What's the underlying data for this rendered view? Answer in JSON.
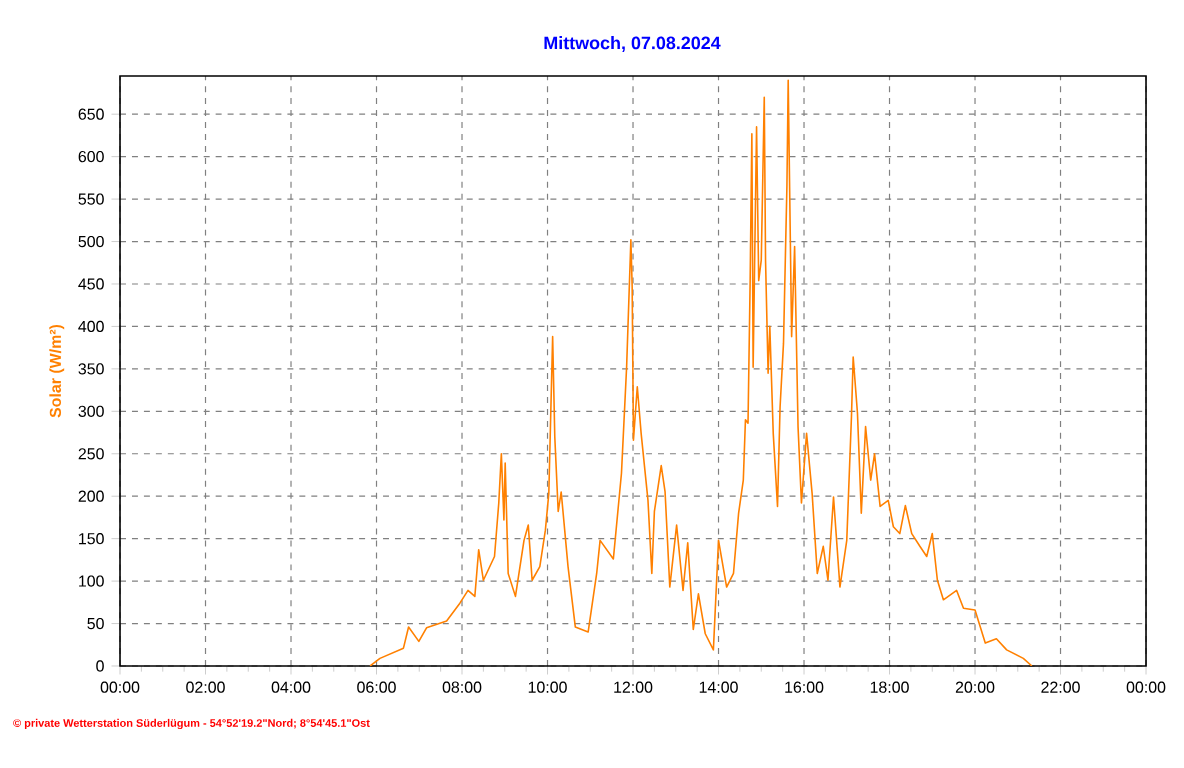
{
  "chart_data": {
    "type": "line",
    "title": "Mittwoch, 07.08.2024",
    "ylabel": "Solar  (W/m²)",
    "annotations": [
      "© private Wetterstation Süderlügum  -  54°52'19.2\"Nord; 8°54'45.1\"Ost"
    ],
    "xlim": [
      0,
      24
    ],
    "ylim": [
      0,
      695
    ],
    "xticks": [
      {
        "value": 0,
        "label": "00:00"
      },
      {
        "value": 2,
        "label": "02:00"
      },
      {
        "value": 4,
        "label": "04:00"
      },
      {
        "value": 6,
        "label": "06:00"
      },
      {
        "value": 8,
        "label": "08:00"
      },
      {
        "value": 10,
        "label": "10:00"
      },
      {
        "value": 12,
        "label": "12:00"
      },
      {
        "value": 14,
        "label": "14:00"
      },
      {
        "value": 16,
        "label": "16:00"
      },
      {
        "value": 18,
        "label": "18:00"
      },
      {
        "value": 20,
        "label": "20:00"
      },
      {
        "value": 22,
        "label": "22:00"
      },
      {
        "value": 24,
        "label": "00:00"
      }
    ],
    "yticks": [
      0,
      50,
      100,
      150,
      200,
      250,
      300,
      350,
      400,
      450,
      500,
      550,
      600,
      650
    ],
    "grid": true,
    "series": [
      {
        "color": "#ff8000",
        "x": [
          5.85,
          6.08,
          6.63,
          6.75,
          6.99,
          7.17,
          7.64,
          7.95,
          8.14,
          8.3,
          8.39,
          8.5,
          8.76,
          8.86,
          8.92,
          8.98,
          9.01,
          9.08,
          9.25,
          9.45,
          9.55,
          9.64,
          9.82,
          9.95,
          10.03,
          10.12,
          10.17,
          10.25,
          10.32,
          10.48,
          10.65,
          10.95,
          11.15,
          11.23,
          11.54,
          11.73,
          11.85,
          11.95,
          11.98,
          12.01,
          12.1,
          12.19,
          12.35,
          12.44,
          12.5,
          12.66,
          12.75,
          12.86,
          13.02,
          13.17,
          13.28,
          13.41,
          13.53,
          13.69,
          13.88,
          14.0,
          14.19,
          14.35,
          14.47,
          14.58,
          14.63,
          14.69,
          14.74,
          14.78,
          14.81,
          14.89,
          14.94,
          15.0,
          15.07,
          15.1,
          15.16,
          15.2,
          15.28,
          15.38,
          15.44,
          15.52,
          15.6,
          15.63,
          15.71,
          15.78,
          15.86,
          15.94,
          16.06,
          16.19,
          16.31,
          16.45,
          16.56,
          16.69,
          16.84,
          17.0,
          17.11,
          17.15,
          17.25,
          17.34,
          17.44,
          17.56,
          17.65,
          17.78,
          17.97,
          18.09,
          18.24,
          18.37,
          18.52,
          18.71,
          18.87,
          19.0,
          19.12,
          19.26,
          19.57,
          19.73,
          20.0,
          20.24,
          20.5,
          20.74,
          21.13,
          21.33
        ],
        "values": [
          0,
          9,
          21,
          46,
          29,
          45,
          53,
          74,
          89,
          82,
          137,
          101,
          129,
          192,
          250,
          172,
          239,
          109,
          82,
          148,
          166,
          101,
          117,
          160,
          203,
          388,
          270,
          182,
          205,
          117,
          46,
          40,
          109,
          148,
          126,
          227,
          352,
          502,
          447,
          266,
          329,
          274,
          195,
          109,
          182,
          236,
          205,
          93,
          166,
          89,
          145,
          43,
          85,
          38,
          19,
          148,
          93,
          109,
          180,
          219,
          290,
          286,
          454,
          627,
          352,
          635,
          454,
          478,
          670,
          478,
          345,
          400,
          274,
          188,
          305,
          380,
          565,
          690,
          388,
          494,
          282,
          192,
          274,
          203,
          109,
          141,
          101,
          199,
          93,
          148,
          294,
          364,
          298,
          180,
          282,
          219,
          250,
          188,
          195,
          164,
          156,
          189,
          156,
          141,
          129,
          156,
          101,
          78,
          89,
          68,
          66,
          27,
          32,
          19,
          9,
          0
        ]
      }
    ]
  }
}
